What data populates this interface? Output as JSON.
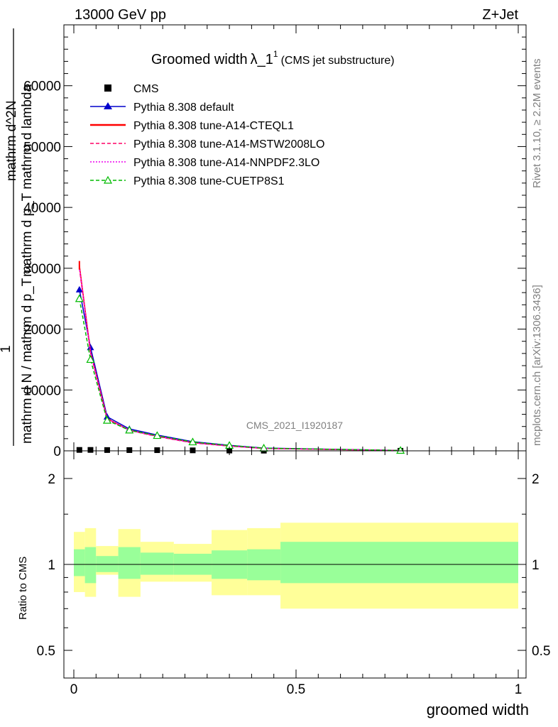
{
  "header": {
    "left": "13000 GeV pp",
    "right": "Z+Jet"
  },
  "main_plot": {
    "title": "Groomed width",
    "title_symbol": "λ_1",
    "title_superscript": "1",
    "title_suffix": "(CMS jet substructure)",
    "ylabel_lines": [
      "mathrm d^2N",
      "mathrm d p_T mathrm d lambda",
      "1",
      "mathrm d N / mathrm d p_T"
    ],
    "yticks": [
      "0",
      "10000",
      "20000",
      "30000",
      "40000",
      "50000",
      "60000"
    ],
    "watermark": "CMS_2021_I1920187"
  },
  "side_labels": {
    "rivet": "Rivet 3.1.10, ≥ 2.2M events",
    "mcplots": "mcplots.cern.ch [arXiv:1306.3436]"
  },
  "ratio_plot": {
    "ylabel": "Ratio to CMS",
    "yticks": [
      "0.5",
      "1",
      "2"
    ],
    "xticks": [
      "0",
      "0.5",
      "1"
    ],
    "xlabel": "groomed width"
  },
  "chart_data": {
    "type": "line",
    "xlim": [
      0,
      1
    ],
    "ylim": [
      0,
      70000
    ],
    "x": [
      0.0125,
      0.0375,
      0.075,
      0.125,
      0.1875,
      0.2675,
      0.35,
      0.4275,
      0.735
    ],
    "series": [
      {
        "name": "CMS",
        "color": "#000000",
        "marker": "square",
        "values": [
          150,
          150,
          130,
          120,
          110,
          80,
          50,
          30,
          10
        ]
      },
      {
        "name": "Pythia 8.308 default",
        "color": "#0000cc",
        "marker": "triangle-filled",
        "values": [
          26500,
          17000,
          5600,
          3600,
          2600,
          1500,
          900,
          450,
          60
        ]
      },
      {
        "name": "Pythia 8.308 tune-A14-CTEQL1",
        "color": "#ff0000",
        "marker": "none",
        "dash": "solid",
        "values": [
          30500,
          16300,
          5300,
          3400,
          2400,
          1350,
          800,
          400,
          50
        ]
      },
      {
        "name": "Pythia 8.308 tune-A14-MSTW2008LO",
        "color": "#ff0066",
        "marker": "none",
        "dash": "dashed",
        "values": [
          30000,
          16100,
          5200,
          3350,
          2350,
          1300,
          780,
          390,
          50
        ]
      },
      {
        "name": "Pythia 8.308 tune-A14-NNPDF2.3LO",
        "color": "#ee00ee",
        "marker": "none",
        "dash": "dotted",
        "values": [
          30200,
          16200,
          5250,
          3380,
          2380,
          1330,
          790,
          395,
          50
        ]
      },
      {
        "name": "Pythia 8.308 tune-CUETP8S1",
        "color": "#00bb00",
        "marker": "triangle-open",
        "dash": "dashed",
        "values": [
          25000,
          15000,
          5000,
          3400,
          2500,
          1450,
          880,
          440,
          60
        ]
      }
    ],
    "ratio": {
      "ylim_log": [
        0.4,
        2.5
      ],
      "band_edges": [
        0,
        0.025,
        0.05,
        0.1,
        0.15,
        0.225,
        0.31,
        0.39,
        0.465,
        1.0
      ],
      "inner_band": [
        [
          0.91,
          1.13
        ],
        [
          0.86,
          1.15
        ],
        [
          0.94,
          1.07
        ],
        [
          0.89,
          1.15
        ],
        [
          0.92,
          1.1
        ],
        [
          0.92,
          1.09
        ],
        [
          0.89,
          1.12
        ],
        [
          0.88,
          1.13
        ],
        [
          0.86,
          1.2
        ]
      ],
      "outer_band": [
        [
          0.8,
          1.3
        ],
        [
          0.77,
          1.34
        ],
        [
          0.92,
          1.16
        ],
        [
          0.77,
          1.33
        ],
        [
          0.87,
          1.2
        ],
        [
          0.87,
          1.18
        ],
        [
          0.78,
          1.32
        ],
        [
          0.78,
          1.34
        ],
        [
          0.7,
          1.4
        ]
      ]
    }
  }
}
